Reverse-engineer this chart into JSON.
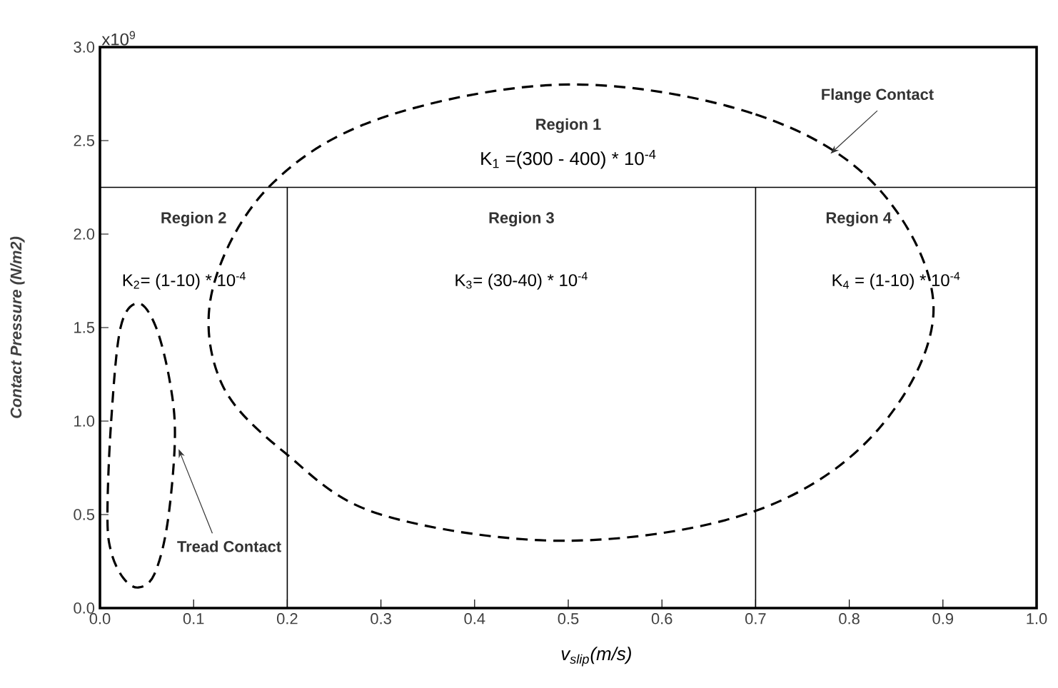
{
  "chart_data": {
    "type": "line",
    "xlabel": "v$_{slip}$(m/s)",
    "ylabel": "Contact Pressure (N/m2)",
    "xlim": [
      0,
      1
    ],
    "ylim": [
      0,
      3
    ],
    "xticks": [
      {
        "value": 0,
        "label": "0.0"
      },
      {
        "value": 0.1,
        "label": "0.1"
      },
      {
        "value": 0.2,
        "label": "0.2"
      },
      {
        "value": 0.3,
        "label": "0.3"
      },
      {
        "value": 0.4,
        "label": "0.4"
      },
      {
        "value": 0.5,
        "label": "0.5"
      },
      {
        "value": 0.6,
        "label": "0.6"
      },
      {
        "value": 0.7,
        "label": "0.7"
      },
      {
        "value": 0.8,
        "label": "0.8"
      },
      {
        "value": 0.9,
        "label": "0.9"
      },
      {
        "value": 1,
        "label": "1.0"
      }
    ],
    "yticks": [
      {
        "value": 0,
        "label": "0.0"
      },
      {
        "value": 0.5,
        "label": "0.5"
      },
      {
        "value": 1,
        "label": "1.0"
      },
      {
        "value": 1.5,
        "label": "1.5"
      },
      {
        "value": 2,
        "label": "2.0"
      },
      {
        "value": 2.5,
        "label": "2.5"
      },
      {
        "value": 3,
        "label": "3.0"
      }
    ],
    "ref_lines": [
      {
        "axis": "y",
        "value": 2.25,
        "color": "#000000"
      },
      {
        "axis": "x",
        "value": 0.2,
        "color": "#000000"
      },
      {
        "axis": "x",
        "value": 0.7,
        "color": "#000000"
      }
    ],
    "annotations": [
      "x10$^{9}$",
      "Region 1",
      "K$_{1}$ =(300 - 400) * 10$^{-4}$",
      "Region 2",
      "K$_{2}$= (1-10) * 10$^{-4}$",
      "Region 3",
      "K$_{3}$= (30-40) * 10$^{-4}$",
      "Region 4",
      "K$_{4}$ = (1-10) * 10$^{-4}$",
      "Flange Contact",
      "Tread Contact"
    ]
  }
}
